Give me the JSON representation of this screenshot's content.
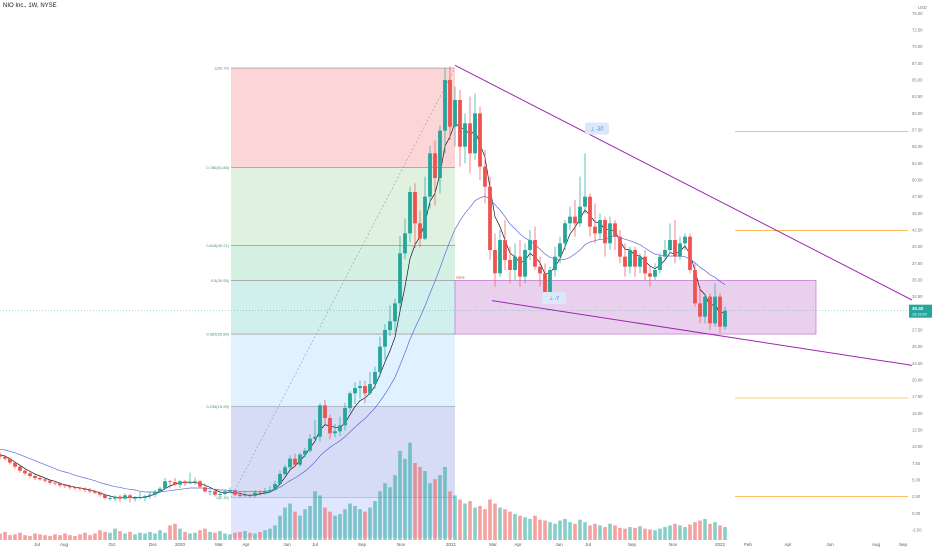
{
  "header": {
    "ticker_line": "NIO Inc., 1W, NYSE"
  },
  "colors": {
    "up": "#26a69a",
    "down": "#ef5350",
    "ma_fast": "#131722",
    "ma_slow": "#5b6be0",
    "trendline": "#9c27b0",
    "zone_fill": "#e1bee7",
    "hline": "#ff9800",
    "fib_100": "#fccfcf",
    "fib_786": "#dcefd9",
    "fib_618": "#cdeede",
    "fib_5": "#c8ecea",
    "fib_382": "#dbeeff",
    "fib_236": "#e4e4e4",
    "fib_0": "#c7d2ff",
    "price_label": "#26a69a"
  },
  "chart_data": {
    "type": "candlestick",
    "y_axis": {
      "unit_label": "USD",
      "ticks": [
        "-2.50",
        "0.00",
        "2.50",
        "5.00",
        "7.50",
        "10.00",
        "12.50",
        "15.00",
        "17.50",
        "20.00",
        "22.50",
        "25.00",
        "27.50",
        "30.00",
        "32.50",
        "35.00",
        "37.50",
        "40.00",
        "42.50",
        "45.00",
        "47.50",
        "50.00",
        "52.50",
        "55.00",
        "57.50",
        "60.00",
        "62.50",
        "65.00",
        "67.50",
        "70.00",
        "72.50",
        "75.00"
      ],
      "range": [
        -4,
        77
      ]
    },
    "x_axis": {
      "labels": [
        "Jul",
        "Aug",
        "Oct",
        "Dec",
        "2020",
        "Mar",
        "Apr",
        "Jun",
        "Jul",
        "Sep",
        "Nov",
        "2021",
        "Mar",
        "Apr",
        "Jun",
        "Jul",
        "Sep",
        "Nov",
        "2022",
        "Feb",
        "Apr",
        "Jun",
        "Aug",
        "Sep"
      ]
    },
    "last_price": "30.40",
    "last_price_sub": "19:19:20",
    "fibonacci": {
      "levels": [
        {
          "ratio": 1,
          "label": "1(66.79)",
          "price": 66.79
        },
        {
          "ratio": 0.786,
          "label": "0.786(51.86)",
          "price": 51.86
        },
        {
          "ratio": 0.618,
          "label": "0.618(40.21)",
          "price": 40.21
        },
        {
          "ratio": 0.5,
          "label": "0.5(34.95)",
          "price": 34.95
        },
        {
          "ratio": 0.382,
          "label": "0.382(26.89)",
          "price": 26.89
        },
        {
          "ratio": 0.236,
          "label": "0.236(15.99)",
          "price": 15.99
        },
        {
          "ratio": 0,
          "label": "0(2.35)",
          "price": 2.35
        }
      ],
      "start_date": "Feb 2020",
      "end_date": "Jan 2021"
    },
    "zone": {
      "label": "zone",
      "top": 34.95,
      "bottom": 26.89
    },
    "horizontal_lines": [
      57.3,
      42.4,
      17.3,
      2.5
    ],
    "annotations": [
      {
        "text": "-37",
        "price": 57.7
      },
      {
        "text": "-7",
        "price": 32.3
      }
    ],
    "trendlines": [
      {
        "name": "upper",
        "from": {
          "date": "Jan 2021",
          "price": 67.2
        },
        "to": {
          "date": "Sep 2022",
          "price": 32.0
        }
      },
      {
        "name": "lower",
        "from": {
          "date": "Feb 2021",
          "price": 31.9
        },
        "to": {
          "date": "Sep 2022",
          "price": 22.2
        }
      }
    ],
    "candles": [
      [
        8.7,
        8.5,
        9.2,
        8.2
      ],
      [
        8.5,
        8.2,
        8.7,
        7.9
      ],
      [
        8.2,
        7.6,
        8.4,
        7.3
      ],
      [
        7.6,
        7.0,
        7.8,
        6.7
      ],
      [
        7.0,
        6.4,
        7.2,
        6.1
      ],
      [
        6.4,
        6.0,
        6.6,
        5.7
      ],
      [
        6.0,
        5.6,
        6.3,
        5.3
      ],
      [
        5.6,
        5.3,
        5.9,
        5.0
      ],
      [
        5.3,
        5.1,
        5.6,
        4.9
      ],
      [
        5.1,
        4.9,
        5.3,
        4.6
      ],
      [
        4.9,
        4.6,
        5.1,
        4.3
      ],
      [
        4.6,
        4.5,
        4.9,
        4.2
      ],
      [
        4.5,
        4.2,
        4.7,
        3.9
      ],
      [
        4.2,
        4.1,
        4.4,
        3.8
      ],
      [
        4.1,
        3.9,
        4.3,
        3.6
      ],
      [
        3.9,
        3.8,
        4.1,
        3.5
      ],
      [
        3.8,
        3.7,
        4.0,
        3.4
      ],
      [
        3.7,
        3.5,
        3.9,
        3.2
      ],
      [
        3.5,
        3.3,
        3.8,
        3.0
      ],
      [
        3.3,
        3.1,
        3.5,
        2.9
      ],
      [
        3.1,
        2.8,
        3.3,
        2.5
      ],
      [
        2.8,
        2.3,
        3.0,
        2.1
      ],
      [
        2.3,
        2.3,
        2.6,
        1.9
      ],
      [
        2.2,
        2.5,
        2.7,
        1.8
      ],
      [
        2.5,
        2.2,
        2.8,
        1.7
      ],
      [
        2.2,
        2.7,
        3.0,
        2.0
      ],
      [
        2.7,
        2.3,
        2.9,
        1.6
      ],
      [
        2.2,
        2.4,
        2.6,
        1.8
      ],
      [
        2.4,
        2.4,
        3.2,
        2.1
      ],
      [
        2.3,
        2.6,
        2.8,
        1.8
      ],
      [
        2.6,
        2.8,
        3.3,
        2.2
      ],
      [
        2.8,
        3.2,
        3.5,
        2.4
      ],
      [
        3.2,
        3.7,
        4.0,
        3.2
      ],
      [
        3.7,
        4.8,
        5.3,
        3.6
      ],
      [
        4.8,
        4.7,
        5.0,
        3.7
      ],
      [
        4.7,
        4.3,
        5.3,
        4.1
      ],
      [
        4.3,
        4.8,
        5.0,
        3.8
      ],
      [
        4.8,
        4.5,
        5.0,
        4.1
      ],
      [
        4.5,
        4.7,
        6.1,
        4.4
      ],
      [
        4.7,
        4.8,
        5.4,
        4.3
      ],
      [
        4.8,
        4.0,
        5.0,
        3.7
      ],
      [
        3.9,
        3.3,
        4.5,
        3.1
      ],
      [
        3.3,
        3.3,
        3.6,
        2.7
      ],
      [
        3.3,
        2.8,
        3.7,
        2.5
      ],
      [
        2.8,
        2.9,
        3.2,
        2.4
      ],
      [
        2.9,
        3.3,
        3.5,
        2.7
      ],
      [
        3.3,
        3.5,
        3.9,
        3.0
      ],
      [
        3.4,
        2.8,
        3.6,
        2.6
      ],
      [
        2.8,
        2.6,
        3.3,
        2.3
      ],
      [
        2.6,
        2.7,
        3.2,
        2.5
      ],
      [
        2.7,
        2.6,
        3.0,
        2.3
      ],
      [
        2.6,
        3.1,
        3.5,
        2.4
      ],
      [
        3.1,
        3.0,
        3.5,
        2.7
      ],
      [
        3.0,
        3.3,
        3.8,
        2.8
      ],
      [
        3.3,
        3.5,
        4.1,
        3.1
      ],
      [
        3.5,
        4.4,
        4.9,
        3.4
      ],
      [
        4.4,
        5.9,
        6.4,
        4.2
      ],
      [
        5.9,
        6.9,
        7.3,
        5.6
      ],
      [
        6.9,
        8.2,
        8.7,
        6.5
      ],
      [
        8.2,
        7.3,
        9.0,
        6.9
      ],
      [
        7.3,
        8.8,
        9.1,
        7.0
      ],
      [
        8.8,
        9.4,
        9.8,
        8.4
      ],
      [
        9.4,
        11.2,
        11.9,
        9.1
      ],
      [
        11.2,
        11.5,
        14.0,
        10.9
      ],
      [
        11.5,
        16.2,
        16.5,
        10.8
      ],
      [
        16.2,
        14.3,
        17.0,
        13.4
      ],
      [
        14.3,
        12.0,
        14.8,
        11.1
      ],
      [
        12.0,
        12.3,
        13.4,
        11.4
      ],
      [
        12.3,
        13.2,
        14.5,
        11.6
      ],
      [
        13.2,
        15.8,
        16.6,
        12.4
      ],
      [
        15.8,
        18.0,
        18.3,
        15.2
      ],
      [
        18.0,
        18.8,
        19.6,
        16.4
      ],
      [
        18.8,
        19.1,
        19.9,
        17.2
      ],
      [
        19.1,
        18.0,
        19.9,
        16.5
      ],
      [
        18.0,
        19.4,
        21.2,
        17.8
      ],
      [
        19.4,
        21.2,
        22.0,
        18.7
      ],
      [
        21.2,
        25.0,
        26.5,
        20.5
      ],
      [
        25.0,
        27.5,
        28.4,
        23.1
      ],
      [
        27.5,
        28.8,
        31.2,
        26.6
      ],
      [
        28.8,
        31.5,
        32.2,
        27.2
      ],
      [
        31.5,
        39.0,
        41.6,
        30.5
      ],
      [
        39.0,
        42.0,
        44.2,
        38.1
      ],
      [
        42.0,
        48.2,
        49.0,
        40.7
      ],
      [
        48.2,
        43.5,
        49.5,
        39.8
      ],
      [
        43.5,
        41.2,
        45.4,
        39.9
      ],
      [
        41.2,
        47.5,
        50.5,
        41.0
      ],
      [
        47.5,
        54.0,
        55.1,
        45.7
      ],
      [
        54.0,
        50.3,
        55.9,
        46.2
      ],
      [
        50.3,
        57.4,
        58.2,
        48.0
      ],
      [
        57.4,
        65.0,
        66.8,
        54.0
      ],
      [
        65.0,
        58.0,
        67.0,
        56.0
      ],
      [
        58.0,
        62.0,
        64.0,
        55.0
      ],
      [
        62.0,
        55.0,
        63.5,
        52.0
      ],
      [
        55.0,
        58.5,
        60.0,
        52.5
      ],
      [
        58.5,
        54.0,
        62.5,
        51.0
      ],
      [
        54.0,
        60.0,
        63.0,
        53.0
      ],
      [
        60.0,
        52.0,
        61.0,
        50.0
      ],
      [
        52.0,
        49.0,
        54.5,
        46.5
      ],
      [
        49.0,
        39.5,
        50.5,
        38.0
      ],
      [
        39.5,
        36.0,
        42.0,
        34.0
      ],
      [
        36.0,
        41.0,
        42.5,
        35.5
      ],
      [
        41.0,
        38.0,
        44.0,
        36.5
      ],
      [
        38.0,
        36.5,
        40.0,
        34.5
      ],
      [
        36.5,
        38.5,
        40.5,
        35.0
      ],
      [
        38.5,
        35.5,
        41.0,
        34.0
      ],
      [
        35.5,
        39.5,
        40.5,
        34.5
      ],
      [
        39.5,
        41.0,
        42.5,
        38.0
      ],
      [
        41.0,
        37.0,
        43.0,
        36.5
      ],
      [
        37.0,
        36.0,
        38.5,
        34.0
      ],
      [
        36.0,
        32.5,
        37.5,
        31.8
      ],
      [
        32.5,
        36.5,
        37.0,
        31.5
      ],
      [
        36.5,
        38.5,
        40.0,
        35.5
      ],
      [
        38.5,
        40.5,
        41.5,
        37.5
      ],
      [
        40.5,
        43.5,
        44.0,
        39.5
      ],
      [
        43.5,
        44.5,
        46.0,
        42.5
      ],
      [
        44.5,
        43.5,
        47.0,
        41.5
      ],
      [
        43.5,
        46.0,
        50.5,
        43.0
      ],
      [
        46.0,
        47.5,
        54.0,
        45.0
      ],
      [
        47.5,
        43.0,
        48.0,
        41.5
      ],
      [
        43.0,
        42.0,
        46.5,
        40.5
      ],
      [
        42.0,
        44.0,
        45.0,
        41.0
      ],
      [
        44.0,
        40.5,
        44.5,
        38.5
      ],
      [
        40.5,
        43.5,
        44.5,
        39.5
      ],
      [
        43.5,
        41.5,
        44.0,
        39.5
      ],
      [
        41.5,
        38.5,
        42.5,
        37.5
      ],
      [
        38.5,
        37.0,
        40.5,
        35.5
      ],
      [
        37.0,
        39.5,
        40.0,
        36.0
      ],
      [
        39.5,
        37.0,
        40.0,
        35.5
      ],
      [
        37.0,
        38.5,
        39.0,
        36.0
      ],
      [
        38.5,
        36.0,
        39.5,
        35.0
      ],
      [
        36.0,
        35.5,
        37.0,
        34.0
      ],
      [
        35.5,
        36.5,
        37.5,
        35.0
      ],
      [
        36.5,
        38.5,
        39.0,
        36.0
      ],
      [
        38.5,
        39.5,
        41.0,
        38.0
      ],
      [
        39.5,
        41.0,
        43.5,
        39.0
      ],
      [
        41.0,
        38.5,
        44.0,
        37.5
      ],
      [
        38.5,
        40.5,
        41.5,
        38.0
      ],
      [
        40.5,
        41.5,
        42.0,
        39.5
      ],
      [
        41.5,
        36.5,
        42.0,
        36.0
      ],
      [
        36.5,
        31.5,
        37.5,
        31.0
      ],
      [
        31.5,
        29.5,
        34.0,
        28.5
      ],
      [
        29.5,
        32.5,
        33.0,
        28.5
      ],
      [
        32.5,
        28.5,
        33.0,
        27.5
      ],
      [
        28.5,
        32.5,
        34.5,
        28.0
      ],
      [
        32.5,
        28.0,
        33.0,
        27.0
      ],
      [
        28.0,
        30.4,
        31.0,
        27.5
      ]
    ],
    "volume_axis": {
      "max": 185
    },
    "volumes": [
      8,
      10,
      6,
      7,
      9,
      6,
      5,
      8,
      7,
      6,
      5,
      7,
      6,
      8,
      6,
      5,
      7,
      9,
      6,
      8,
      12,
      10,
      9,
      14,
      11,
      8,
      10,
      7,
      9,
      8,
      10,
      8,
      12,
      9,
      18,
      20,
      14,
      10,
      8,
      9,
      12,
      14,
      10,
      9,
      11,
      8,
      7,
      9,
      10,
      11,
      9,
      8,
      10,
      12,
      14,
      18,
      30,
      40,
      45,
      35,
      30,
      38,
      42,
      60,
      55,
      40,
      35,
      30,
      32,
      38,
      45,
      42,
      38,
      35,
      40,
      48,
      60,
      70,
      65,
      80,
      110,
      100,
      120,
      95,
      90,
      85,
      70,
      75,
      80,
      90,
      60,
      55,
      50,
      45,
      48,
      40,
      42,
      38,
      50,
      45,
      40,
      38,
      35,
      32,
      30,
      28,
      26,
      30,
      25,
      24,
      22,
      20,
      24,
      26,
      22,
      20,
      25,
      22,
      18,
      20,
      18,
      16,
      20,
      18,
      15,
      14,
      16,
      15,
      17,
      14,
      13,
      12,
      14,
      16,
      18,
      20,
      18,
      16,
      19,
      22,
      24,
      26,
      20,
      22,
      18,
      16
    ],
    "moving_averages": [
      {
        "name": "fast",
        "values": [
          8.8,
          8.6,
          8.2,
          7.7,
          7.2,
          6.7,
          6.3,
          5.9,
          5.6,
          5.3,
          5.0,
          4.8,
          4.5,
          4.3,
          4.1,
          3.9,
          3.8,
          3.7,
          3.5,
          3.3,
          3.1,
          2.8,
          2.6,
          2.4,
          2.4,
          2.4,
          2.4,
          2.4,
          2.4,
          2.4,
          2.6,
          2.9,
          3.2,
          3.7,
          4.1,
          4.4,
          4.6,
          4.6,
          4.7,
          4.6,
          4.5,
          4.2,
          3.9,
          3.5,
          3.2,
          3.1,
          3.2,
          3.1,
          3.0,
          2.8,
          2.7,
          2.8,
          2.9,
          3.0,
          3.2,
          3.6,
          4.4,
          5.4,
          6.5,
          7.1,
          7.9,
          8.7,
          9.8,
          10.8,
          12.5,
          13.3,
          13.1,
          12.9,
          12.9,
          13.5,
          14.8,
          16.0,
          16.9,
          17.3,
          18.0,
          19.1,
          20.8,
          22.7,
          24.4,
          26.4,
          30.3,
          34.0,
          38.2,
          40.3,
          41.5,
          43.5,
          46.8,
          48.0,
          50.9,
          55.1,
          56.5,
          58.6,
          57.9,
          57.6,
          56.8,
          57.4,
          55.4,
          53.4,
          48.8,
          44.5,
          43.0,
          41.0,
          39.0,
          38.5,
          37.6,
          37.9,
          39.0,
          38.4,
          37.6,
          35.9,
          36.1,
          37.0,
          38.2,
          40.0,
          41.9,
          42.9,
          44.2,
          45.5,
          44.7,
          43.7,
          43.6,
          42.5,
          42.6,
          42.3,
          40.9,
          39.6,
          39.5,
          38.7,
          38.6,
          37.8,
          37.1,
          36.7,
          37.2,
          38.0,
          39.1,
          38.9,
          39.3,
          40.1,
          38.9,
          36.4,
          33.6,
          32.8,
          31.1,
          31.4,
          30.0,
          30.2
        ]
      },
      {
        "name": "slow",
        "values": [
          9.6,
          9.5,
          9.3,
          9.1,
          8.8,
          8.5,
          8.2,
          7.9,
          7.6,
          7.3,
          7.0,
          6.7,
          6.4,
          6.2,
          6.0,
          5.7,
          5.5,
          5.3,
          5.1,
          4.9,
          4.6,
          4.4,
          4.2,
          4.0,
          3.9,
          3.7,
          3.6,
          3.5,
          3.3,
          3.2,
          3.2,
          3.2,
          3.2,
          3.3,
          3.4,
          3.5,
          3.6,
          3.7,
          3.8,
          3.8,
          3.8,
          3.8,
          3.7,
          3.6,
          3.5,
          3.5,
          3.4,
          3.4,
          3.3,
          3.3,
          3.3,
          3.3,
          3.3,
          3.3,
          3.4,
          3.6,
          3.9,
          4.4,
          4.9,
          5.3,
          5.8,
          6.3,
          7.0,
          7.7,
          8.6,
          9.3,
          9.9,
          10.4,
          10.9,
          11.5,
          12.2,
          12.9,
          13.6,
          14.2,
          15.0,
          15.8,
          16.8,
          17.9,
          19.1,
          20.4,
          22.2,
          24.1,
          26.1,
          27.8,
          29.4,
          31.1,
          33.0,
          34.8,
          36.8,
          38.9,
          40.8,
          42.6,
          43.9,
          45.0,
          45.9,
          46.9,
          47.3,
          47.6,
          47.1,
          46.3,
          45.5,
          44.5,
          43.4,
          42.7,
          41.9,
          41.3,
          40.9,
          40.3,
          39.6,
          38.9,
          38.4,
          38.2,
          38.0,
          38.1,
          38.4,
          38.9,
          39.5,
          40.3,
          40.7,
          40.9,
          41.1,
          41.1,
          41.4,
          41.6,
          41.4,
          41.1,
          40.9,
          40.6,
          40.3,
          39.8,
          39.3,
          38.9,
          38.7,
          38.6,
          38.6,
          38.6,
          38.6,
          38.5,
          38.1,
          37.6,
          36.9,
          36.4,
          35.8,
          35.4,
          34.8,
          34.3
        ]
      }
    ]
  }
}
